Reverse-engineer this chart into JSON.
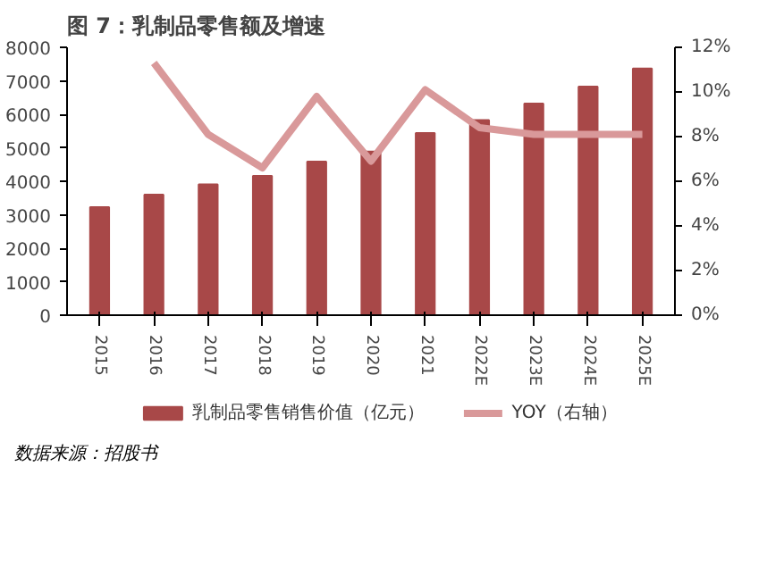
{
  "chart_data": {
    "type": "bar",
    "title": "图 7：乳制品零售额及增速",
    "categories": [
      "2015",
      "2016",
      "2017",
      "2018",
      "2019",
      "2020",
      "2021",
      "2022E",
      "2023E",
      "2024E",
      "2025E"
    ],
    "series": [
      {
        "name": "乳制品零售销售价值（亿元）",
        "type": "bar",
        "color": "#a84848",
        "values": [
          3230,
          3600,
          3910,
          4160,
          4590,
          4890,
          5440,
          5830,
          6320,
          6830,
          7370
        ]
      },
      {
        "name": "YOY（右轴）",
        "type": "line",
        "axis": "y2",
        "color": "#d9999a",
        "values": [
          null,
          11.3,
          8.1,
          6.6,
          9.8,
          6.9,
          10.1,
          8.4,
          8.1,
          8.1,
          8.1
        ]
      }
    ],
    "ylim": [
      0,
      8000
    ],
    "yticks": [
      0,
      1000,
      2000,
      3000,
      4000,
      5000,
      6000,
      7000,
      8000
    ],
    "y2lim": [
      0,
      12
    ],
    "y2ticks": [
      {
        "value": 0,
        "label": "0%"
      },
      {
        "value": 2,
        "label": "2%"
      },
      {
        "value": 4,
        "label": "4%"
      },
      {
        "value": 6,
        "label": "6%"
      },
      {
        "value": 8,
        "label": "8%"
      },
      {
        "value": 10,
        "label": "10%"
      },
      {
        "value": 12,
        "label": "12%"
      }
    ],
    "grid": false,
    "legend": "bottom",
    "line_style": "solid",
    "marker": "none",
    "annotations": [
      "数据来源：招股书"
    ]
  }
}
